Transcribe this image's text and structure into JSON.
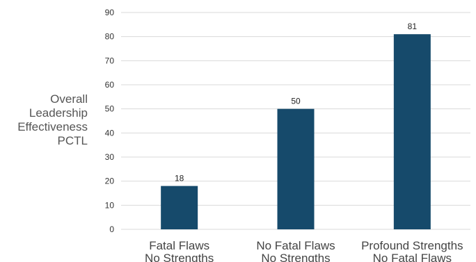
{
  "chart_data": {
    "type": "bar",
    "title": "",
    "ylabel_lines": [
      "Overall",
      "Leadership",
      "Effectiveness",
      "PCTL"
    ],
    "xlabel": "",
    "categories": [
      [
        "Fatal Flaws",
        "No Strengths"
      ],
      [
        "No Fatal Flaws",
        "No Strengths"
      ],
      [
        "Profound Strengths",
        "No Fatal Flaws"
      ]
    ],
    "values": [
      18,
      50,
      81
    ],
    "data_labels": [
      "18",
      "50",
      "81"
    ],
    "ylim": [
      0,
      90
    ],
    "yticks": [
      0,
      10,
      20,
      30,
      40,
      50,
      60,
      70,
      80,
      90
    ],
    "grid": true,
    "legend": "none",
    "bar_color": "#164a6b",
    "grid_color": "#d9d9d9"
  }
}
